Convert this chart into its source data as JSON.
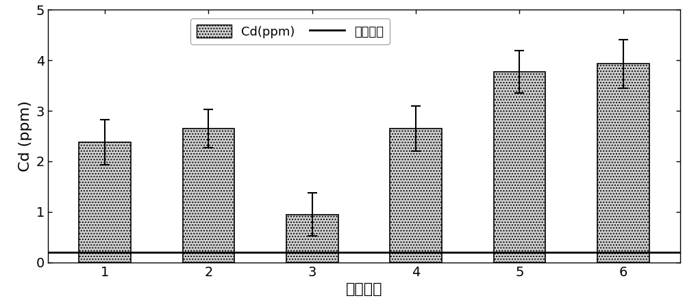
{
  "categories": [
    "1",
    "2",
    "3",
    "4",
    "5",
    "6"
  ],
  "values": [
    2.38,
    2.65,
    0.95,
    2.65,
    3.78,
    3.93
  ],
  "errors": [
    0.45,
    0.38,
    0.42,
    0.45,
    0.42,
    0.48
  ],
  "bar_color": "#d0d0d0",
  "bar_hatch": "....",
  "bar_edgecolor": "#000000",
  "national_standard": 0.2,
  "national_standard_color": "#000000",
  "national_standard_lw": 2.0,
  "xlabel": "样品编号",
  "ylabel": "Cd (ppm)",
  "ylim": [
    0,
    5
  ],
  "yticks": [
    0,
    1,
    2,
    3,
    4,
    5
  ],
  "legend_bar_label": "Cd(ppm)",
  "legend_line_label": "国家标准",
  "xlabel_fontsize": 16,
  "ylabel_fontsize": 16,
  "tick_fontsize": 14,
  "legend_fontsize": 13,
  "background_color": "#ffffff",
  "bar_width": 0.5
}
